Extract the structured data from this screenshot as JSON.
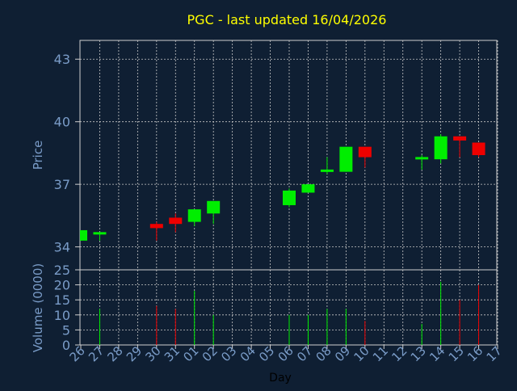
{
  "chart_data": [
    {
      "type": "candlestick",
      "title": "PGC - last updated 16/04/2026",
      "ylabel": "Price",
      "ylim": [
        32.9,
        43.9
      ],
      "yticks": [
        34,
        37,
        40,
        43
      ],
      "grid": true,
      "categories": [
        "26",
        "27",
        "28",
        "29",
        "30",
        "31",
        "01",
        "02",
        "03",
        "04",
        "05",
        "06",
        "07",
        "08",
        "09",
        "10",
        "11",
        "12",
        "13",
        "14",
        "15",
        "16",
        "17"
      ],
      "candles": [
        {
          "day": "26",
          "open": 34.3,
          "high": 34.8,
          "low": 34.3,
          "close": 34.8,
          "direction": "up"
        },
        {
          "day": "27",
          "open": 34.6,
          "high": 34.7,
          "low": 34.3,
          "close": 34.7,
          "direction": "up"
        },
        {
          "day": "30",
          "open": 35.1,
          "high": 35.2,
          "low": 34.3,
          "close": 34.9,
          "direction": "down"
        },
        {
          "day": "31",
          "open": 35.4,
          "high": 35.6,
          "low": 34.7,
          "close": 35.1,
          "direction": "down"
        },
        {
          "day": "01",
          "open": 35.2,
          "high": 35.8,
          "low": 35.0,
          "close": 35.8,
          "direction": "up"
        },
        {
          "day": "02",
          "open": 35.6,
          "high": 36.2,
          "low": 35.1,
          "close": 36.2,
          "direction": "up"
        },
        {
          "day": "06",
          "open": 36.0,
          "high": 36.8,
          "low": 35.9,
          "close": 36.7,
          "direction": "up"
        },
        {
          "day": "07",
          "open": 36.6,
          "high": 37.0,
          "low": 36.6,
          "close": 37.0,
          "direction": "up"
        },
        {
          "day": "08",
          "open": 37.6,
          "high": 38.3,
          "low": 37.5,
          "close": 37.7,
          "direction": "up"
        },
        {
          "day": "09",
          "open": 37.6,
          "high": 38.8,
          "low": 37.6,
          "close": 38.8,
          "direction": "up"
        },
        {
          "day": "10",
          "open": 38.8,
          "high": 38.8,
          "low": 37.8,
          "close": 38.3,
          "direction": "down"
        },
        {
          "day": "13",
          "open": 38.2,
          "high": 38.4,
          "low": 37.7,
          "close": 38.3,
          "direction": "up"
        },
        {
          "day": "14",
          "open": 38.2,
          "high": 39.4,
          "low": 38.0,
          "close": 39.3,
          "direction": "up"
        },
        {
          "day": "15",
          "open": 39.3,
          "high": 39.3,
          "low": 38.3,
          "close": 39.1,
          "direction": "down"
        },
        {
          "day": "16",
          "open": 39.0,
          "high": 39.0,
          "low": 38.3,
          "close": 38.4,
          "direction": "down"
        }
      ],
      "colors": {
        "up": "#00ee00",
        "down": "#ee0000",
        "title": "#ffff00",
        "axis_text": "#7a9cc8",
        "grid": "#c8c8c8",
        "background": "#0f1f33"
      }
    },
    {
      "type": "bar",
      "ylabel": "Volume (0000)",
      "xlabel": "Day",
      "ylim": [
        0,
        25
      ],
      "yticks": [
        0,
        5,
        10,
        15,
        20,
        25
      ],
      "grid": true,
      "categories": [
        "26",
        "27",
        "28",
        "29",
        "30",
        "31",
        "01",
        "02",
        "03",
        "04",
        "05",
        "06",
        "07",
        "08",
        "09",
        "10",
        "11",
        "12",
        "13",
        "14",
        "15",
        "16",
        "17"
      ],
      "volumes": [
        {
          "day": "27",
          "value": 12,
          "direction": "up"
        },
        {
          "day": "30",
          "value": 13,
          "direction": "down"
        },
        {
          "day": "31",
          "value": 12,
          "direction": "down"
        },
        {
          "day": "01",
          "value": 18,
          "direction": "up"
        },
        {
          "day": "02",
          "value": 10,
          "direction": "up"
        },
        {
          "day": "06",
          "value": 10,
          "direction": "up"
        },
        {
          "day": "07",
          "value": 10,
          "direction": "up"
        },
        {
          "day": "08",
          "value": 12,
          "direction": "up"
        },
        {
          "day": "09",
          "value": 12,
          "direction": "up"
        },
        {
          "day": "10",
          "value": 8,
          "direction": "down"
        },
        {
          "day": "13",
          "value": 7,
          "direction": "up"
        },
        {
          "day": "14",
          "value": 21,
          "direction": "up"
        },
        {
          "day": "15",
          "value": 15,
          "direction": "down"
        },
        {
          "day": "16",
          "value": 20,
          "direction": "down"
        }
      ]
    }
  ]
}
